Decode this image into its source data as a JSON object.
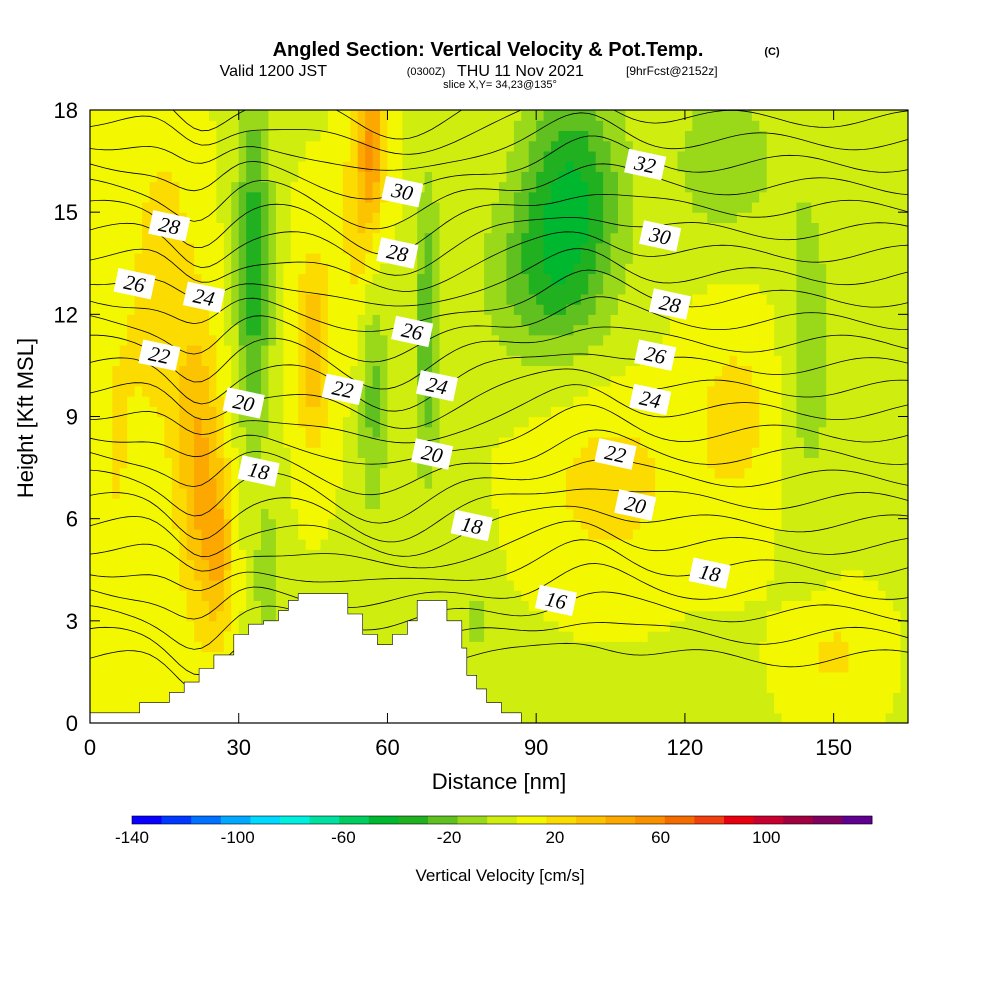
{
  "header": {
    "title": "Angled Section: Vertical Velocity & Pot.Temp.",
    "title_mark": "(C)",
    "valid_prefix": "Valid 1200 JST",
    "valid_utc": "(0300Z)",
    "valid_date": "THU 11 Nov 2021",
    "forecast": "[9hrFcst@2152z]",
    "slice": "slice X,Y= 34,23@135°"
  },
  "chart_data": {
    "type": "heatmap",
    "xlabel": "Distance [nm]",
    "ylabel": "Height [Kft MSL]",
    "xlim": [
      0,
      165
    ],
    "ylim": [
      0,
      18
    ],
    "x_ticks": [
      0,
      30,
      60,
      90,
      120,
      150
    ],
    "y_ticks": [
      0,
      3,
      6,
      9,
      12,
      15,
      18
    ],
    "colorbar": {
      "label": "Vertical Velocity [cm/s]",
      "tick_labels": [
        "-140",
        "-100",
        "-60",
        "-20",
        "20",
        "60",
        "100"
      ],
      "tick_values": [
        -140,
        -100,
        -60,
        -20,
        20,
        60,
        100
      ],
      "range": [
        -140,
        140
      ],
      "colors": [
        "#0a00ff",
        "#0038ff",
        "#0070ff",
        "#00a8ff",
        "#00d8ff",
        "#00f0e0",
        "#00e0a0",
        "#00cc60",
        "#00b830",
        "#20b020",
        "#60c020",
        "#9ad81a",
        "#cfee10",
        "#f3f700",
        "#fcdc00",
        "#fcc400",
        "#fca800",
        "#f89000",
        "#f46c00",
        "#f04010",
        "#e80010",
        "#c80030",
        "#a00040",
        "#800060",
        "#600090"
      ]
    },
    "filled_contours_vertical_velocity": {
      "units": "cm/s",
      "background_value": 5,
      "features": [
        {
          "type": "updraft",
          "x": 22,
          "y": 7.5,
          "sx": 4.5,
          "sy": 4.5,
          "value": 35
        },
        {
          "type": "updraft",
          "x": 26,
          "y": 5.0,
          "sx": 3,
          "sy": 2.5,
          "value": 28
        },
        {
          "type": "updraft",
          "x": 15,
          "y": 13.0,
          "sx": 6,
          "sy": 5,
          "value": 18
        },
        {
          "type": "updraft",
          "x": 45,
          "y": 11.0,
          "sx": 3.5,
          "sy": 3,
          "value": 32
        },
        {
          "type": "updraft",
          "x": 55,
          "y": 15.0,
          "sx": 4,
          "sy": 4,
          "value": 25
        },
        {
          "type": "updraft",
          "x": 57,
          "y": 17.0,
          "sx": 2.5,
          "sy": 2,
          "value": 35
        },
        {
          "type": "updraft",
          "x": 105,
          "y": 7.0,
          "sx": 14,
          "sy": 2.5,
          "value": 18
        },
        {
          "type": "updraft",
          "x": 130,
          "y": 9.0,
          "sx": 9,
          "sy": 3,
          "value": 16
        },
        {
          "type": "updraft",
          "x": 150,
          "y": 2.0,
          "sx": 8,
          "sy": 1.5,
          "value": 14
        },
        {
          "type": "updraft",
          "x": 5,
          "y": 8.0,
          "sx": 6,
          "sy": 8,
          "value": 12
        },
        {
          "type": "downdraft",
          "x": 33,
          "y": 13.5,
          "sx": 3.5,
          "sy": 5,
          "value": -42
        },
        {
          "type": "downdraft",
          "x": 36,
          "y": 4.0,
          "sx": 3,
          "sy": 2.5,
          "value": -18
        },
        {
          "type": "downdraft",
          "x": 57,
          "y": 10.0,
          "sx": 3,
          "sy": 4,
          "value": -28
        },
        {
          "type": "downdraft",
          "x": 68,
          "y": 11.5,
          "sx": 2.5,
          "sy": 4.5,
          "value": -32
        },
        {
          "type": "downdraft",
          "x": 97,
          "y": 15.5,
          "sx": 10,
          "sy": 3.5,
          "value": -45
        },
        {
          "type": "downdraft",
          "x": 90,
          "y": 13.0,
          "sx": 12,
          "sy": 2.5,
          "value": -22
        },
        {
          "type": "downdraft",
          "x": 128,
          "y": 16.5,
          "sx": 12,
          "sy": 2.5,
          "value": -18
        },
        {
          "type": "downdraft",
          "x": 145,
          "y": 11.0,
          "sx": 5,
          "sy": 5,
          "value": -18
        },
        {
          "type": "downdraft",
          "x": 78,
          "y": 3.0,
          "sx": 3,
          "sy": 2.5,
          "value": -12
        }
      ]
    },
    "contours_potential_temperature": {
      "units": "C",
      "labels": [
        {
          "value": "16",
          "x": 94,
          "y": 3.6
        },
        {
          "value": "18",
          "x": 34,
          "y": 7.4
        },
        {
          "value": "18",
          "x": 77,
          "y": 5.8
        },
        {
          "value": "18",
          "x": 125,
          "y": 4.4
        },
        {
          "value": "20",
          "x": 31,
          "y": 9.4
        },
        {
          "value": "20",
          "x": 69,
          "y": 7.9
        },
        {
          "value": "20",
          "x": 110,
          "y": 6.4
        },
        {
          "value": "22",
          "x": 14,
          "y": 10.8
        },
        {
          "value": "22",
          "x": 51,
          "y": 9.8
        },
        {
          "value": "22",
          "x": 106,
          "y": 7.9
        },
        {
          "value": "24",
          "x": 23,
          "y": 12.5
        },
        {
          "value": "24",
          "x": 70,
          "y": 9.9
        },
        {
          "value": "24",
          "x": 113,
          "y": 9.5
        },
        {
          "value": "26",
          "x": 9,
          "y": 12.9
        },
        {
          "value": "26",
          "x": 65,
          "y": 11.5
        },
        {
          "value": "26",
          "x": 114,
          "y": 10.8
        },
        {
          "value": "28",
          "x": 16,
          "y": 14.6
        },
        {
          "value": "28",
          "x": 62,
          "y": 13.8
        },
        {
          "value": "28",
          "x": 117,
          "y": 12.3
        },
        {
          "value": "30",
          "x": 63,
          "y": 15.6
        },
        {
          "value": "30",
          "x": 115,
          "y": 14.3
        },
        {
          "value": "32",
          "x": 112,
          "y": 16.4
        }
      ]
    },
    "terrain": {
      "description": "blocky terrain profile (white)",
      "x": [
        0,
        10,
        10,
        16,
        16,
        19,
        19,
        22,
        22,
        25,
        25,
        29,
        29,
        32,
        32,
        35,
        35,
        38,
        38,
        40,
        40,
        42,
        42,
        47,
        47,
        52,
        52,
        55,
        55,
        58,
        58,
        61,
        61,
        64,
        64,
        66,
        66,
        72,
        72,
        75,
        75,
        76,
        76,
        78,
        78,
        80,
        80,
        83,
        83,
        87,
        87,
        90,
        165
      ],
      "y": [
        0.3,
        0.3,
        0.6,
        0.6,
        0.9,
        0.9,
        1.2,
        1.2,
        1.6,
        1.6,
        2.0,
        2.0,
        2.6,
        2.6,
        2.9,
        2.9,
        3.0,
        3.0,
        3.3,
        3.3,
        3.6,
        3.6,
        3.8,
        3.8,
        3.8,
        3.8,
        3.2,
        3.2,
        2.6,
        2.6,
        2.3,
        2.3,
        2.6,
        2.6,
        3.0,
        3.0,
        3.6,
        3.6,
        3.0,
        3.0,
        2.2,
        2.2,
        1.4,
        1.4,
        1.0,
        1.0,
        0.6,
        0.6,
        0.3,
        0.3,
        0.0,
        0.0,
        0.0
      ]
    }
  }
}
